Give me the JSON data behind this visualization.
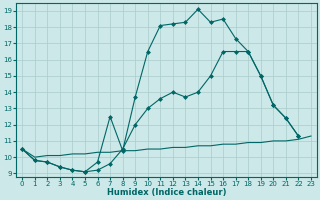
{
  "bg_color": "#cce8e8",
  "grid_color": "#aacccc",
  "line_color": "#006666",
  "xlabel": "Humidex (Indice chaleur)",
  "xlim": [
    -0.5,
    23.5
  ],
  "ylim": [
    8.8,
    19.5
  ],
  "xticks": [
    0,
    1,
    2,
    3,
    4,
    5,
    6,
    7,
    8,
    9,
    10,
    11,
    12,
    13,
    14,
    15,
    16,
    17,
    18,
    19,
    20,
    21,
    22,
    23
  ],
  "yticks": [
    9,
    10,
    11,
    12,
    13,
    14,
    15,
    16,
    17,
    18,
    19
  ],
  "line1_x": [
    0,
    1,
    2,
    3,
    4,
    5,
    6,
    7,
    8,
    9,
    10,
    11,
    12,
    13,
    14,
    15,
    16,
    17,
    18,
    19,
    20,
    21,
    22,
    23
  ],
  "line1_y": [
    10.5,
    10.0,
    10.1,
    10.1,
    10.2,
    10.2,
    10.3,
    10.3,
    10.4,
    10.4,
    10.5,
    10.5,
    10.6,
    10.6,
    10.7,
    10.7,
    10.8,
    10.8,
    10.9,
    10.9,
    11.0,
    11.0,
    11.1,
    11.3
  ],
  "line2_x": [
    0,
    1,
    2,
    3,
    4,
    5,
    6,
    7,
    8,
    9,
    10,
    11,
    12,
    13,
    14,
    15,
    16,
    17,
    18,
    19,
    20,
    21,
    22
  ],
  "line2_y": [
    10.5,
    9.8,
    9.7,
    9.4,
    9.2,
    9.1,
    9.7,
    12.5,
    10.4,
    13.7,
    16.5,
    18.1,
    18.2,
    18.3,
    19.1,
    18.3,
    18.5,
    17.3,
    16.5,
    15.0,
    13.2,
    12.4,
    11.3
  ],
  "line3_x": [
    0,
    1,
    2,
    3,
    4,
    5,
    6,
    7,
    8,
    9,
    10,
    11,
    12,
    13,
    14,
    15,
    16,
    17,
    18,
    19,
    20,
    21,
    22
  ],
  "line3_y": [
    10.5,
    9.8,
    9.7,
    9.4,
    9.2,
    9.1,
    9.2,
    9.6,
    10.5,
    12.0,
    13.0,
    13.6,
    14.0,
    13.7,
    14.0,
    15.0,
    16.5,
    16.5,
    16.5,
    15.0,
    13.2,
    12.4,
    11.3
  ]
}
